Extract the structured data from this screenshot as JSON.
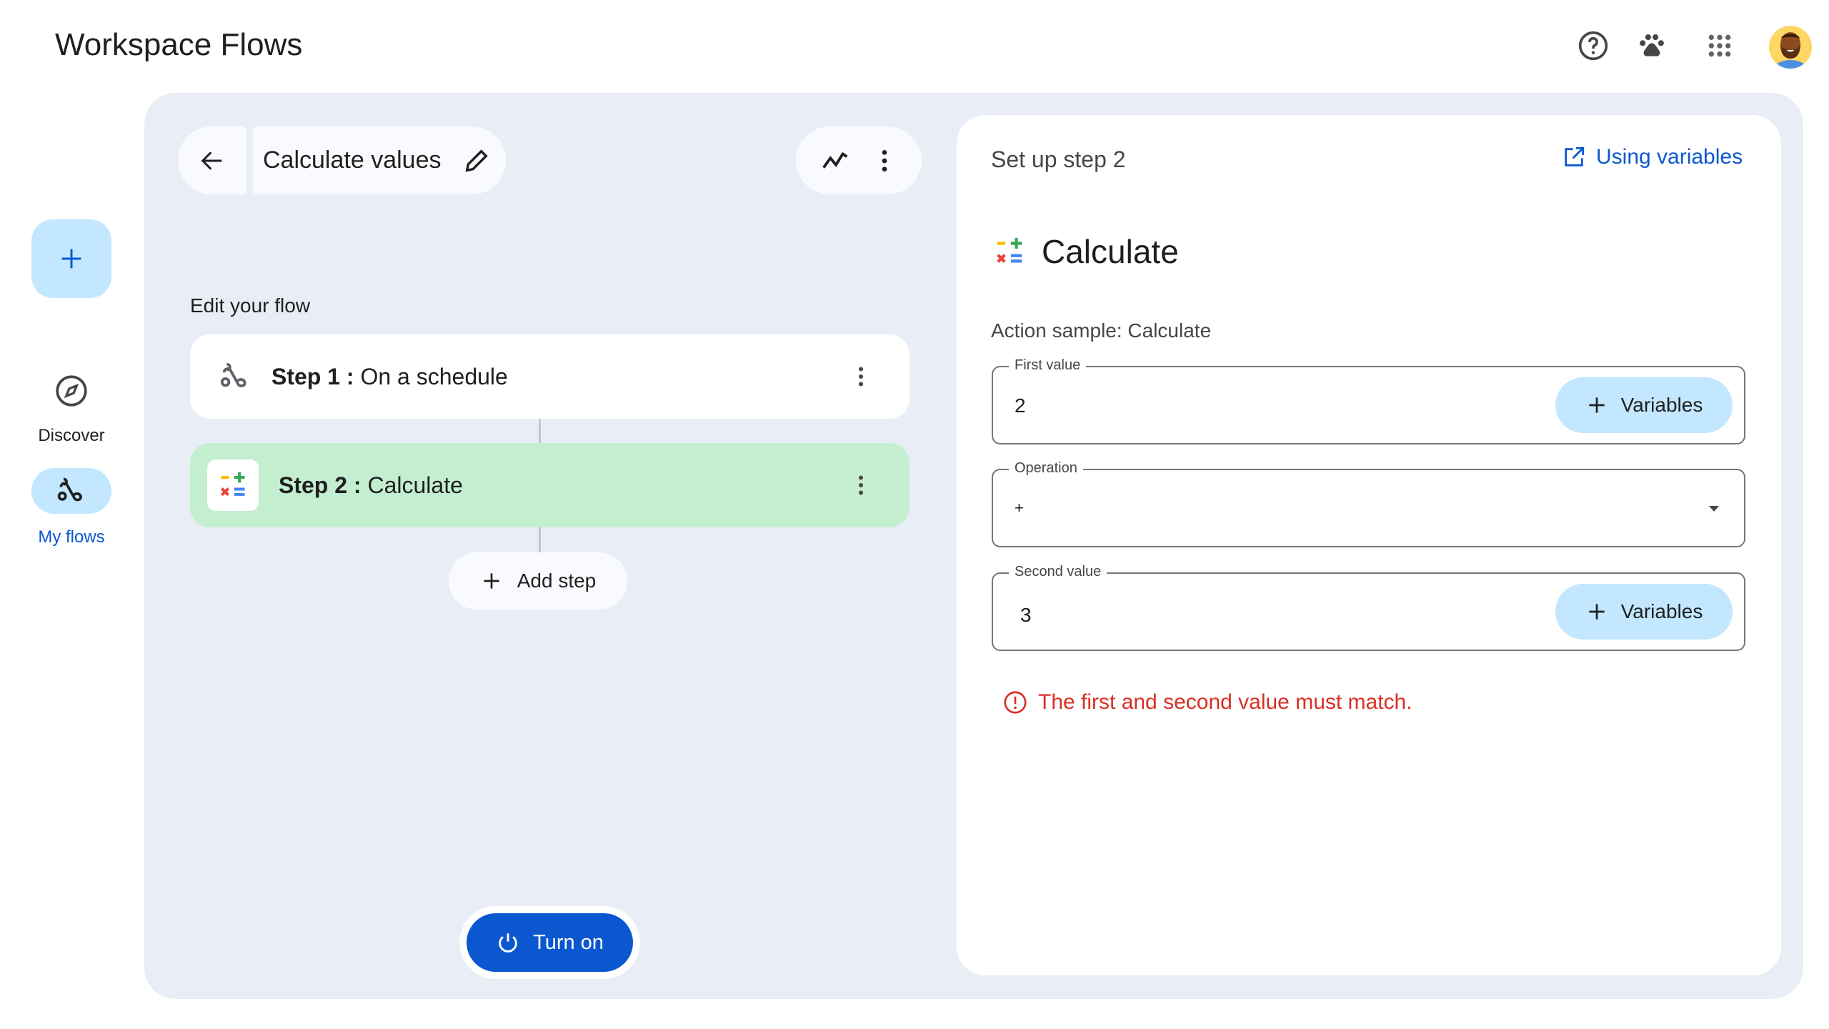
{
  "app": {
    "title": "Workspace Flows"
  },
  "header": {
    "icons": [
      "help-icon",
      "paw-icon",
      "apps-grid-icon",
      "avatar"
    ]
  },
  "sidebar": {
    "new_icon": "plus-icon",
    "items": [
      {
        "label": "Discover",
        "icon": "compass-icon"
      },
      {
        "label": "My flows",
        "icon": "flows-icon",
        "active": true
      }
    ]
  },
  "flow": {
    "title": "Calculate values",
    "section_label": "Edit your flow",
    "steps": [
      {
        "prefix": "Step 1 :",
        "label": "On a schedule",
        "icon": "schedule-flow-icon"
      },
      {
        "prefix": "Step 2 :",
        "label": "Calculate",
        "icon": "calculator-icon",
        "selected": true
      }
    ],
    "add_step": "Add step",
    "turn_on": "Turn on"
  },
  "panel": {
    "title": "Set up step 2",
    "help_link": "Using variables",
    "action_title": "Calculate",
    "action_sample": "Action sample: Calculate",
    "fields": [
      {
        "label": "First value",
        "value": "2",
        "button": "Variables"
      },
      {
        "label": "Operation",
        "value": "+"
      },
      {
        "label": "Second value",
        "value": "3",
        "button": "Variables"
      }
    ],
    "error": "The first and second value must match."
  },
  "colors": {
    "accent": "#0b57d0",
    "selected_step": "#c4eed0",
    "chip": "#c2e7ff",
    "error": "#d93025",
    "canvas": "#e9eef6"
  }
}
